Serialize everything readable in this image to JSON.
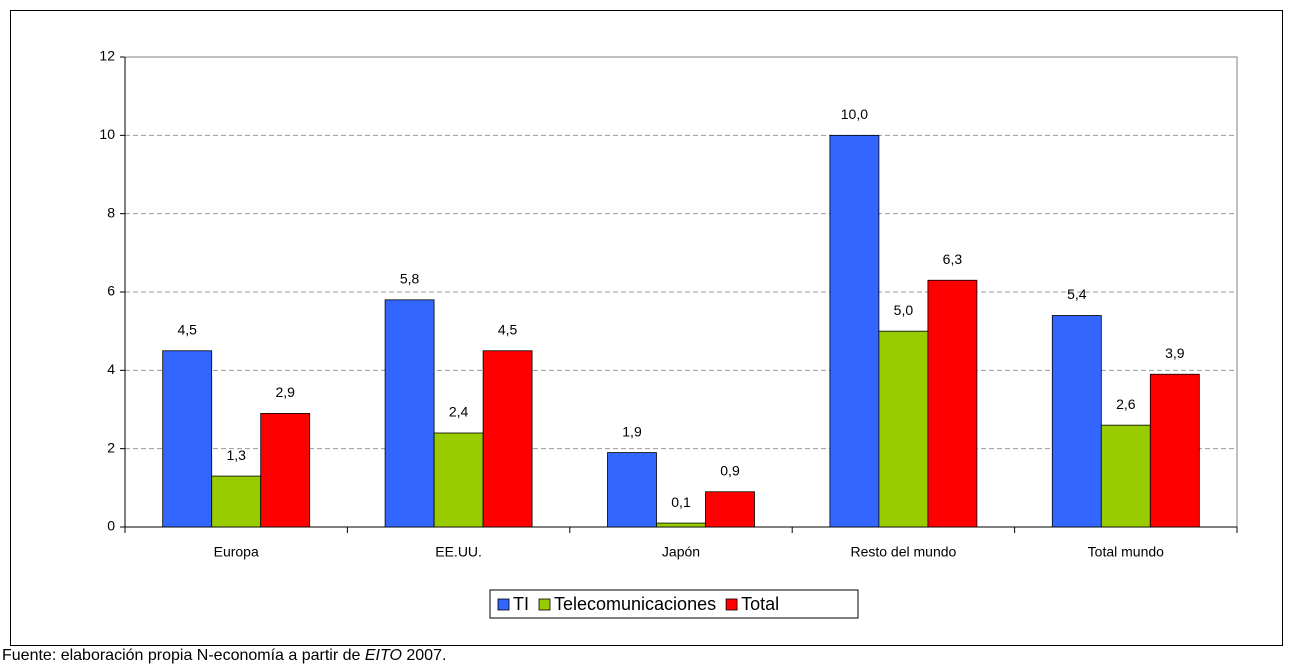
{
  "chart_data": {
    "type": "bar",
    "categories": [
      "Europa",
      "EE.UU.",
      "Japón",
      "Resto del mundo",
      "Total mundo"
    ],
    "series": [
      {
        "name": "TI",
        "color": "#3366ff",
        "values": [
          4.5,
          5.8,
          1.9,
          10.0,
          5.4
        ],
        "value_labels": [
          "4,5",
          "5,8",
          "1,9",
          "10,0",
          "5,4"
        ]
      },
      {
        "name": "Telecomunicaciones",
        "color": "#99cc00",
        "values": [
          1.3,
          2.4,
          0.1,
          5.0,
          2.6
        ],
        "value_labels": [
          "1,3",
          "2,4",
          "0,1",
          "5,0",
          "2,6"
        ]
      },
      {
        "name": "Total",
        "color": "#ff0000",
        "values": [
          2.9,
          4.5,
          0.9,
          6.3,
          3.9
        ],
        "value_labels": [
          "2,9",
          "4,5",
          "0,9",
          "6,3",
          "3,9"
        ]
      }
    ],
    "ylim": [
      0,
      12
    ],
    "yticks": [
      0,
      2,
      4,
      6,
      8,
      10,
      12
    ],
    "grid": true,
    "legend": "bottom"
  },
  "source": {
    "prefix": "Fuente: elaboración propia N-economía a partir de ",
    "italic": "EITO",
    "suffix": " 2007."
  }
}
